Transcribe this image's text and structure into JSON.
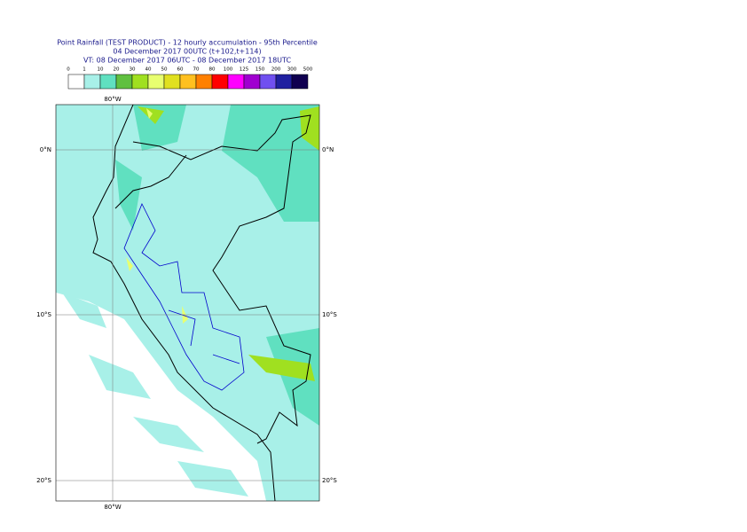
{
  "header": {
    "title": "Point Rainfall (TEST PRODUCT) - 12 hourly accumulation - 95th Percentile",
    "line2": "04 December 2017 00UTC (t+102,t+114)",
    "line3": "VT: 08 December 2017 06UTC - 08 December 2017 18UTC"
  },
  "legend": {
    "thresholds": [
      0,
      1,
      10,
      20,
      30,
      40,
      50,
      60,
      70,
      80,
      100,
      125,
      150,
      200,
      300,
      500
    ],
    "colors": [
      "#ffffff",
      "#a8f0e8",
      "#60e0c0",
      "#60c040",
      "#a0e020",
      "#e8ff70",
      "#e0e020",
      "#ffc020",
      "#ff8000",
      "#ff0000",
      "#ff00ff",
      "#a000d0",
      "#7050f0",
      "#2020a0",
      "#100050"
    ]
  },
  "map": {
    "lon_top": "80°W",
    "lon_bottom": "80°W",
    "lat_left": [
      "0°N",
      "10°S",
      "20°S"
    ],
    "lat_right": [
      "0°N",
      "10°S",
      "20°S"
    ]
  }
}
